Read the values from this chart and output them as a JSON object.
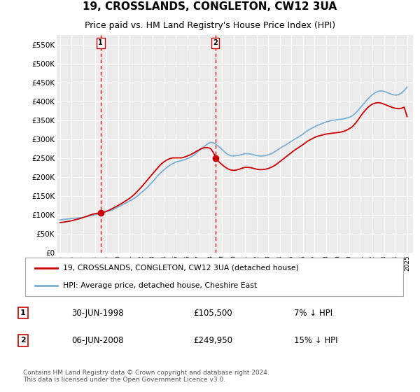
{
  "title": "19, CROSSLANDS, CONGLETON, CW12 3UA",
  "subtitle": "Price paid vs. HM Land Registry's House Price Index (HPI)",
  "title_fontsize": 11,
  "subtitle_fontsize": 9,
  "ylabel_ticks": [
    "£0",
    "£50K",
    "£100K",
    "£150K",
    "£200K",
    "£250K",
    "£300K",
    "£350K",
    "£400K",
    "£450K",
    "£500K",
    "£550K"
  ],
  "ytick_values": [
    0,
    50000,
    100000,
    150000,
    200000,
    250000,
    300000,
    350000,
    400000,
    450000,
    500000,
    550000
  ],
  "ylim": [
    0,
    575000
  ],
  "xlim_start": 1994.7,
  "xlim_end": 2025.5,
  "background_color": "#ffffff",
  "plot_bg_color": "#ebebeb",
  "grid_color": "#ffffff",
  "transaction1": {
    "date_num": 1998.5,
    "price": 105500,
    "label": "1"
  },
  "transaction2": {
    "date_num": 2008.42,
    "price": 249950,
    "label": "2"
  },
  "legend_line1": "19, CROSSLANDS, CONGLETON, CW12 3UA (detached house)",
  "legend_line2": "HPI: Average price, detached house, Cheshire East",
  "annotation1_date": "30-JUN-1998",
  "annotation1_price": "£105,500",
  "annotation1_hpi": "7% ↓ HPI",
  "annotation2_date": "06-JUN-2008",
  "annotation2_price": "£249,950",
  "annotation2_hpi": "15% ↓ HPI",
  "footer": "Contains HM Land Registry data © Crown copyright and database right 2024.\nThis data is licensed under the Open Government Licence v3.0.",
  "hpi_color": "#7bafd4",
  "price_color": "#cc0000",
  "vline_color": "#cc0000",
  "marker_color": "#cc0000",
  "hpi_x": [
    1995,
    1995.25,
    1995.5,
    1995.75,
    1996,
    1996.25,
    1996.5,
    1996.75,
    1997,
    1997.25,
    1997.5,
    1997.75,
    1998,
    1998.25,
    1998.5,
    1998.75,
    1999,
    1999.25,
    1999.5,
    1999.75,
    2000,
    2000.25,
    2000.5,
    2000.75,
    2001,
    2001.25,
    2001.5,
    2001.75,
    2002,
    2002.25,
    2002.5,
    2002.75,
    2003,
    2003.25,
    2003.5,
    2003.75,
    2004,
    2004.25,
    2004.5,
    2004.75,
    2005,
    2005.25,
    2005.5,
    2005.75,
    2006,
    2006.25,
    2006.5,
    2006.75,
    2007,
    2007.25,
    2007.5,
    2007.75,
    2008,
    2008.25,
    2008.5,
    2008.75,
    2009,
    2009.25,
    2009.5,
    2009.75,
    2010,
    2010.25,
    2010.5,
    2010.75,
    2011,
    2011.25,
    2011.5,
    2011.75,
    2012,
    2012.25,
    2012.5,
    2012.75,
    2013,
    2013.25,
    2013.5,
    2013.75,
    2014,
    2014.25,
    2014.5,
    2014.75,
    2015,
    2015.25,
    2015.5,
    2015.75,
    2016,
    2016.25,
    2016.5,
    2016.75,
    2017,
    2017.25,
    2017.5,
    2017.75,
    2018,
    2018.25,
    2018.5,
    2018.75,
    2019,
    2019.25,
    2019.5,
    2019.75,
    2020,
    2020.25,
    2020.5,
    2020.75,
    2021,
    2021.25,
    2021.5,
    2021.75,
    2022,
    2022.25,
    2022.5,
    2022.75,
    2023,
    2023.25,
    2023.5,
    2023.75,
    2024,
    2024.25,
    2024.5,
    2024.75,
    2025
  ],
  "hpi_y": [
    87000,
    88000,
    89000,
    90000,
    91000,
    91500,
    92000,
    93000,
    94000,
    95500,
    97000,
    99000,
    101000,
    102000,
    103500,
    106000,
    109000,
    111000,
    113500,
    117000,
    121000,
    125000,
    129000,
    133000,
    137000,
    141000,
    146000,
    152000,
    159000,
    165000,
    172000,
    180000,
    188000,
    197000,
    206000,
    213000,
    220000,
    226000,
    232000,
    236000,
    240000,
    242000,
    244000,
    246000,
    249000,
    252000,
    257000,
    263000,
    270000,
    276000,
    282000,
    288000,
    292000,
    291000,
    286000,
    280000,
    273000,
    266000,
    260000,
    257000,
    256000,
    257000,
    258000,
    260000,
    262000,
    262000,
    261000,
    259000,
    257000,
    256000,
    256000,
    257000,
    259000,
    262000,
    266000,
    271000,
    276000,
    281000,
    285000,
    290000,
    295000,
    300000,
    304000,
    309000,
    314000,
    320000,
    325000,
    329000,
    333000,
    337000,
    340000,
    343000,
    346000,
    348000,
    350000,
    351000,
    352000,
    353000,
    354000,
    356000,
    358000,
    362000,
    368000,
    376000,
    385000,
    394000,
    403000,
    411000,
    418000,
    423000,
    427000,
    428000,
    427000,
    424000,
    421000,
    418000,
    417000,
    418000,
    422000,
    429000,
    438000
  ],
  "price_x": [
    1995,
    1995.25,
    1995.5,
    1995.75,
    1996,
    1996.25,
    1996.5,
    1996.75,
    1997,
    1997.25,
    1997.5,
    1997.75,
    1998,
    1998.25,
    1998.5,
    1998.75,
    1999,
    1999.25,
    1999.5,
    1999.75,
    2000,
    2000.25,
    2000.5,
    2000.75,
    2001,
    2001.25,
    2001.5,
    2001.75,
    2002,
    2002.25,
    2002.5,
    2002.75,
    2003,
    2003.25,
    2003.5,
    2003.75,
    2004,
    2004.25,
    2004.5,
    2004.75,
    2005,
    2005.25,
    2005.5,
    2005.75,
    2006,
    2006.25,
    2006.5,
    2006.75,
    2007,
    2007.25,
    2007.5,
    2007.75,
    2008,
    2008.25,
    2008.5,
    2008.75,
    2009,
    2009.25,
    2009.5,
    2009.75,
    2010,
    2010.25,
    2010.5,
    2010.75,
    2011,
    2011.25,
    2011.5,
    2011.75,
    2012,
    2012.25,
    2012.5,
    2012.75,
    2013,
    2013.25,
    2013.5,
    2013.75,
    2014,
    2014.25,
    2014.5,
    2014.75,
    2015,
    2015.25,
    2015.5,
    2015.75,
    2016,
    2016.25,
    2016.5,
    2016.75,
    2017,
    2017.25,
    2017.5,
    2017.75,
    2018,
    2018.25,
    2018.5,
    2018.75,
    2019,
    2019.25,
    2019.5,
    2019.75,
    2020,
    2020.25,
    2020.5,
    2020.75,
    2021,
    2021.25,
    2021.5,
    2021.75,
    2022,
    2022.25,
    2022.5,
    2022.75,
    2023,
    2023.25,
    2023.5,
    2023.75,
    2024,
    2024.25,
    2024.5,
    2024.75,
    2025
  ],
  "price_y": [
    80000,
    81000,
    82000,
    83500,
    85000,
    87000,
    89000,
    91000,
    93500,
    96000,
    99000,
    101500,
    103500,
    104500,
    105500,
    107000,
    110000,
    113000,
    117000,
    121000,
    125000,
    129500,
    134000,
    139000,
    144000,
    150000,
    157000,
    165000,
    173000,
    182000,
    191000,
    200000,
    209000,
    218000,
    227000,
    235000,
    241000,
    246000,
    249000,
    251000,
    251000,
    251000,
    251000,
    253000,
    256000,
    259000,
    263000,
    268000,
    272000,
    276000,
    278000,
    278000,
    276000,
    265000,
    249950,
    240000,
    233000,
    227000,
    222000,
    219000,
    218000,
    219000,
    221000,
    224000,
    226000,
    226000,
    225000,
    223000,
    221000,
    220000,
    220000,
    221000,
    223000,
    226000,
    230000,
    235000,
    241000,
    247000,
    253000,
    259000,
    265000,
    271000,
    276000,
    281000,
    286000,
    292000,
    297000,
    301000,
    305000,
    308000,
    310000,
    312000,
    314000,
    315000,
    316000,
    317000,
    318000,
    319000,
    321000,
    324000,
    328000,
    333000,
    341000,
    351000,
    362000,
    372000,
    381000,
    388000,
    393000,
    396000,
    397000,
    396000,
    393000,
    390000,
    387000,
    384000,
    382000,
    381000,
    382000,
    385000,
    360000
  ]
}
